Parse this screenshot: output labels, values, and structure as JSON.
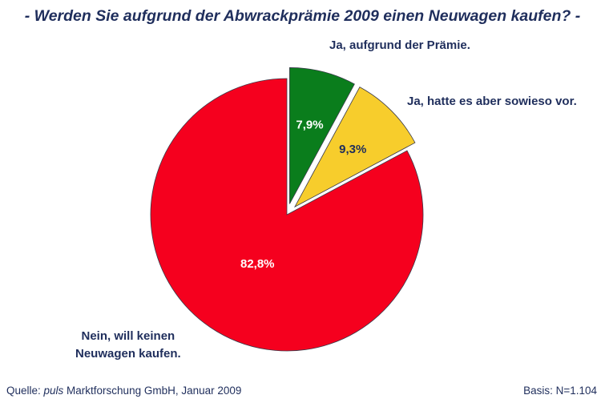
{
  "chart_data": {
    "type": "pie",
    "title": "- Werden Sie aufgrund der Abwrackprämie 2009 einen Neuwagen kaufen? -",
    "slices": [
      {
        "label": "Ja, aufgrund der Prämie.",
        "value": 7.9,
        "value_label": "7,9%",
        "color": "#0a7d1c",
        "text_color": "#ffffff",
        "exploded": true
      },
      {
        "label": "Ja, hatte es aber sowieso vor.",
        "value": 9.3,
        "value_label": "9,3%",
        "color": "#f7cd2c",
        "text_color": "#1f2e5c",
        "exploded": true
      },
      {
        "label_lines": [
          "Nein, will keinen",
          "Neuwagen kaufen."
        ],
        "value": 82.8,
        "value_label": "82,8%",
        "color": "#f5001e",
        "text_color": "#ffffff",
        "exploded": false
      }
    ],
    "start": "top, clockwise"
  },
  "footer": {
    "source_prefix": "Quelle: ",
    "source_italic": "puls",
    "source_rest": " Marktforschung GmbH, Januar 2009",
    "basis": "Basis: N=1.104"
  }
}
